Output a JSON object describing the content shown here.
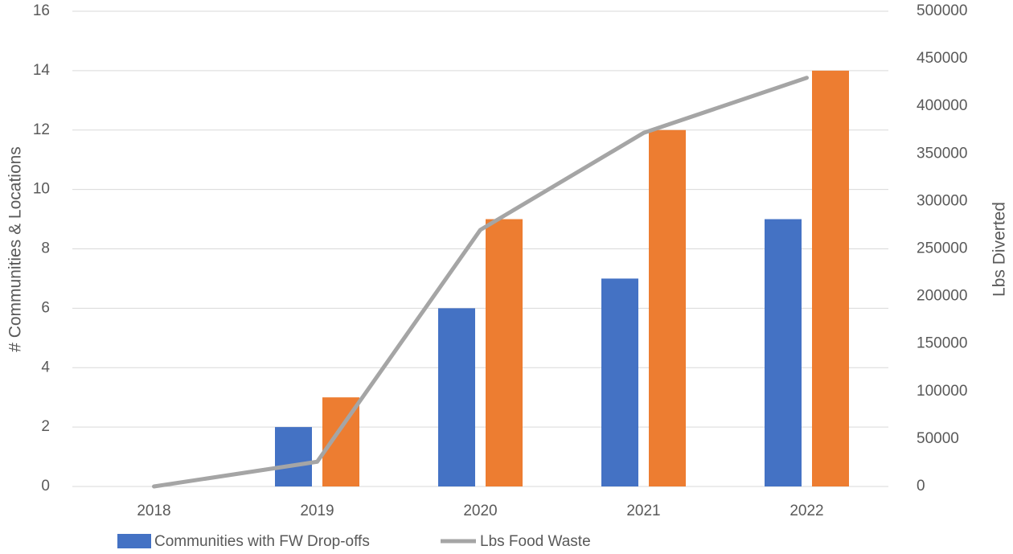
{
  "chart_data": {
    "type": "bar",
    "categories": [
      "2018",
      "2019",
      "2020",
      "2021",
      "2022"
    ],
    "series": [
      {
        "name": "Communities with FW Drop-offs",
        "type": "bar",
        "axis": "left",
        "color": "#4472C4",
        "values": [
          0,
          2,
          6,
          7,
          9
        ]
      },
      {
        "name": "",
        "type": "bar",
        "axis": "left",
        "color": "#ED7D31",
        "values": [
          0,
          3,
          9,
          12,
          14
        ]
      },
      {
        "name": "Lbs Food Waste",
        "type": "line",
        "axis": "right",
        "color": "#A5A5A5",
        "values": [
          0,
          26000,
          270000,
          372000,
          430000
        ]
      }
    ],
    "ylabel": "# Communities & Locations",
    "ylabel_right": "Lbs Diverted",
    "ylim": [
      0,
      16
    ],
    "y_ticks": [
      "0",
      "2",
      "4",
      "6",
      "8",
      "10",
      "12",
      "14",
      "16"
    ],
    "ylim_right": [
      0,
      500000
    ],
    "y_right_ticks": [
      "0",
      "50000",
      "100000",
      "150000",
      "200000",
      "250000",
      "300000",
      "350000",
      "400000",
      "450000",
      "500000"
    ],
    "grid": true,
    "legend_position": "bottom-left"
  }
}
